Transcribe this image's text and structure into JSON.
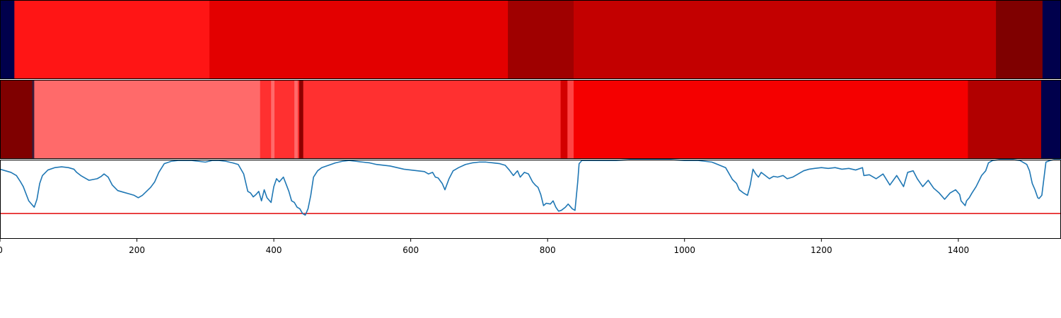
{
  "colors": {
    "line": "#1f77b4",
    "threshold": "#e41a1c",
    "frame": "#000000"
  },
  "chart_data": [
    {
      "type": "heatmap",
      "title": "",
      "xlim": [
        0,
        1550
      ],
      "colormap": "seismic",
      "segments": [
        {
          "start": 0,
          "end": 21,
          "color": "#00004c"
        },
        {
          "start": 21,
          "end": 306,
          "color": "#ff1515"
        },
        {
          "start": 306,
          "end": 742,
          "color": "#e30000"
        },
        {
          "start": 742,
          "end": 838,
          "color": "#9f0000"
        },
        {
          "start": 838,
          "end": 1455,
          "color": "#c30000"
        },
        {
          "start": 1455,
          "end": 1523,
          "color": "#7f0000"
        },
        {
          "start": 1523,
          "end": 1550,
          "color": "#00004c"
        }
      ]
    },
    {
      "type": "heatmap",
      "title": "",
      "xlim": [
        0,
        1550
      ],
      "colormap": "seismic",
      "segments": [
        {
          "start": 0,
          "end": 47,
          "color": "#7f0000"
        },
        {
          "start": 47,
          "end": 50,
          "color": "#3a1a3a"
        },
        {
          "start": 50,
          "end": 380,
          "color": "#ff6a6a"
        },
        {
          "start": 380,
          "end": 396,
          "color": "#ff3030"
        },
        {
          "start": 396,
          "end": 401,
          "color": "#ff6a6a"
        },
        {
          "start": 401,
          "end": 430,
          "color": "#ff3030"
        },
        {
          "start": 430,
          "end": 435,
          "color": "#ff6a6a"
        },
        {
          "start": 435,
          "end": 437,
          "color": "#ff3030"
        },
        {
          "start": 437,
          "end": 443,
          "color": "#8f0000"
        },
        {
          "start": 443,
          "end": 819,
          "color": "#ff3030"
        },
        {
          "start": 819,
          "end": 829,
          "color": "#d30000"
        },
        {
          "start": 829,
          "end": 838,
          "color": "#ff4444"
        },
        {
          "start": 838,
          "end": 1414,
          "color": "#f50000"
        },
        {
          "start": 1414,
          "end": 1521,
          "color": "#b10000"
        },
        {
          "start": 1521,
          "end": 1550,
          "color": "#00004c"
        }
      ]
    },
    {
      "type": "line",
      "title": "",
      "xlabel": "",
      "ylabel": "",
      "xlim": [
        0,
        1550
      ],
      "ylim": [
        0,
        1
      ],
      "xticks": [
        0,
        200,
        400,
        600,
        800,
        1000,
        1200,
        1400
      ],
      "grid": false,
      "threshold": 0.32,
      "series": [
        {
          "name": "",
          "x": [
            0,
            8,
            16,
            24,
            30,
            34,
            38,
            42,
            46,
            50,
            54,
            58,
            62,
            70,
            80,
            90,
            100,
            108,
            112,
            118,
            124,
            130,
            136,
            142,
            148,
            152,
            158,
            164,
            172,
            180,
            188,
            196,
            202,
            208,
            214,
            220,
            226,
            232,
            240,
            250,
            260,
            270,
            280,
            290,
            300,
            310,
            320,
            330,
            340,
            348,
            356,
            362,
            366,
            370,
            374,
            378,
            382,
            386,
            390,
            396,
            400,
            404,
            408,
            414,
            418,
            422,
            426,
            430,
            434,
            438,
            442,
            446,
            450,
            454,
            458,
            464,
            470,
            480,
            490,
            500,
            510,
            520,
            530,
            540,
            550,
            560,
            570,
            580,
            590,
            600,
            610,
            620,
            626,
            632,
            636,
            640,
            646,
            650,
            656,
            662,
            670,
            680,
            690,
            700,
            710,
            720,
            730,
            738,
            744,
            750,
            756,
            760,
            766,
            772,
            778,
            782,
            786,
            790,
            794,
            798,
            804,
            808,
            812,
            816,
            820,
            826,
            830,
            836,
            840,
            844,
            846,
            850,
            860,
            880,
            900,
            920,
            940,
            960,
            980,
            1000,
            1020,
            1040,
            1060,
            1070,
            1076,
            1080,
            1086,
            1092,
            1096,
            1100,
            1104,
            1108,
            1112,
            1118,
            1124,
            1130,
            1136,
            1144,
            1150,
            1158,
            1166,
            1174,
            1182,
            1190,
            1200,
            1210,
            1220,
            1230,
            1240,
            1250,
            1260,
            1262,
            1270,
            1280,
            1290,
            1300,
            1310,
            1320,
            1326,
            1334,
            1340,
            1348,
            1356,
            1364,
            1372,
            1380,
            1388,
            1396,
            1402,
            1404,
            1408,
            1410,
            1412,
            1416,
            1420,
            1426,
            1434,
            1440,
            1444,
            1450,
            1460,
            1470,
            1480,
            1490,
            1500,
            1504,
            1508,
            1512,
            1516,
            1518,
            1522,
            1528,
            1534,
            1540,
            1550
          ],
          "values": [
            0.88,
            0.86,
            0.84,
            0.8,
            0.72,
            0.66,
            0.57,
            0.48,
            0.44,
            0.4,
            0.5,
            0.7,
            0.8,
            0.87,
            0.9,
            0.91,
            0.9,
            0.88,
            0.84,
            0.8,
            0.77,
            0.74,
            0.75,
            0.76,
            0.79,
            0.82,
            0.78,
            0.68,
            0.61,
            0.59,
            0.57,
            0.55,
            0.52,
            0.55,
            0.6,
            0.65,
            0.72,
            0.84,
            0.95,
            0.98,
            0.99,
            0.99,
            0.99,
            0.98,
            0.97,
            0.99,
            0.99,
            0.98,
            0.96,
            0.94,
            0.82,
            0.6,
            0.58,
            0.53,
            0.56,
            0.6,
            0.48,
            0.62,
            0.52,
            0.46,
            0.66,
            0.76,
            0.72,
            0.78,
            0.69,
            0.6,
            0.48,
            0.46,
            0.4,
            0.38,
            0.32,
            0.3,
            0.38,
            0.55,
            0.78,
            0.86,
            0.9,
            0.93,
            0.96,
            0.98,
            0.99,
            0.98,
            0.97,
            0.96,
            0.94,
            0.93,
            0.92,
            0.9,
            0.88,
            0.87,
            0.86,
            0.85,
            0.82,
            0.84,
            0.78,
            0.77,
            0.7,
            0.62,
            0.76,
            0.86,
            0.9,
            0.94,
            0.96,
            0.97,
            0.97,
            0.96,
            0.95,
            0.93,
            0.87,
            0.8,
            0.86,
            0.78,
            0.84,
            0.82,
            0.72,
            0.68,
            0.65,
            0.56,
            0.42,
            0.45,
            0.44,
            0.48,
            0.4,
            0.35,
            0.36,
            0.4,
            0.44,
            0.38,
            0.36,
            0.72,
            0.95,
            0.99,
            0.99,
            0.99,
            0.99,
            1.0,
            1.0,
            1.0,
            1.0,
            0.99,
            0.99,
            0.97,
            0.9,
            0.75,
            0.7,
            0.62,
            0.58,
            0.55,
            0.68,
            0.88,
            0.82,
            0.78,
            0.84,
            0.8,
            0.76,
            0.79,
            0.78,
            0.8,
            0.76,
            0.78,
            0.82,
            0.86,
            0.88,
            0.89,
            0.9,
            0.89,
            0.9,
            0.88,
            0.89,
            0.87,
            0.9,
            0.8,
            0.81,
            0.76,
            0.82,
            0.68,
            0.8,
            0.66,
            0.84,
            0.86,
            0.76,
            0.66,
            0.74,
            0.64,
            0.58,
            0.5,
            0.58,
            0.62,
            0.56,
            0.48,
            0.44,
            0.42,
            0.48,
            0.52,
            0.58,
            0.66,
            0.8,
            0.86,
            0.96,
            0.99,
            1.0,
            1.0,
            1.0,
            0.99,
            0.94,
            0.86,
            0.7,
            0.62,
            0.52,
            0.51,
            0.55,
            0.97,
            0.99,
            1.0,
            1.0
          ]
        }
      ]
    }
  ]
}
